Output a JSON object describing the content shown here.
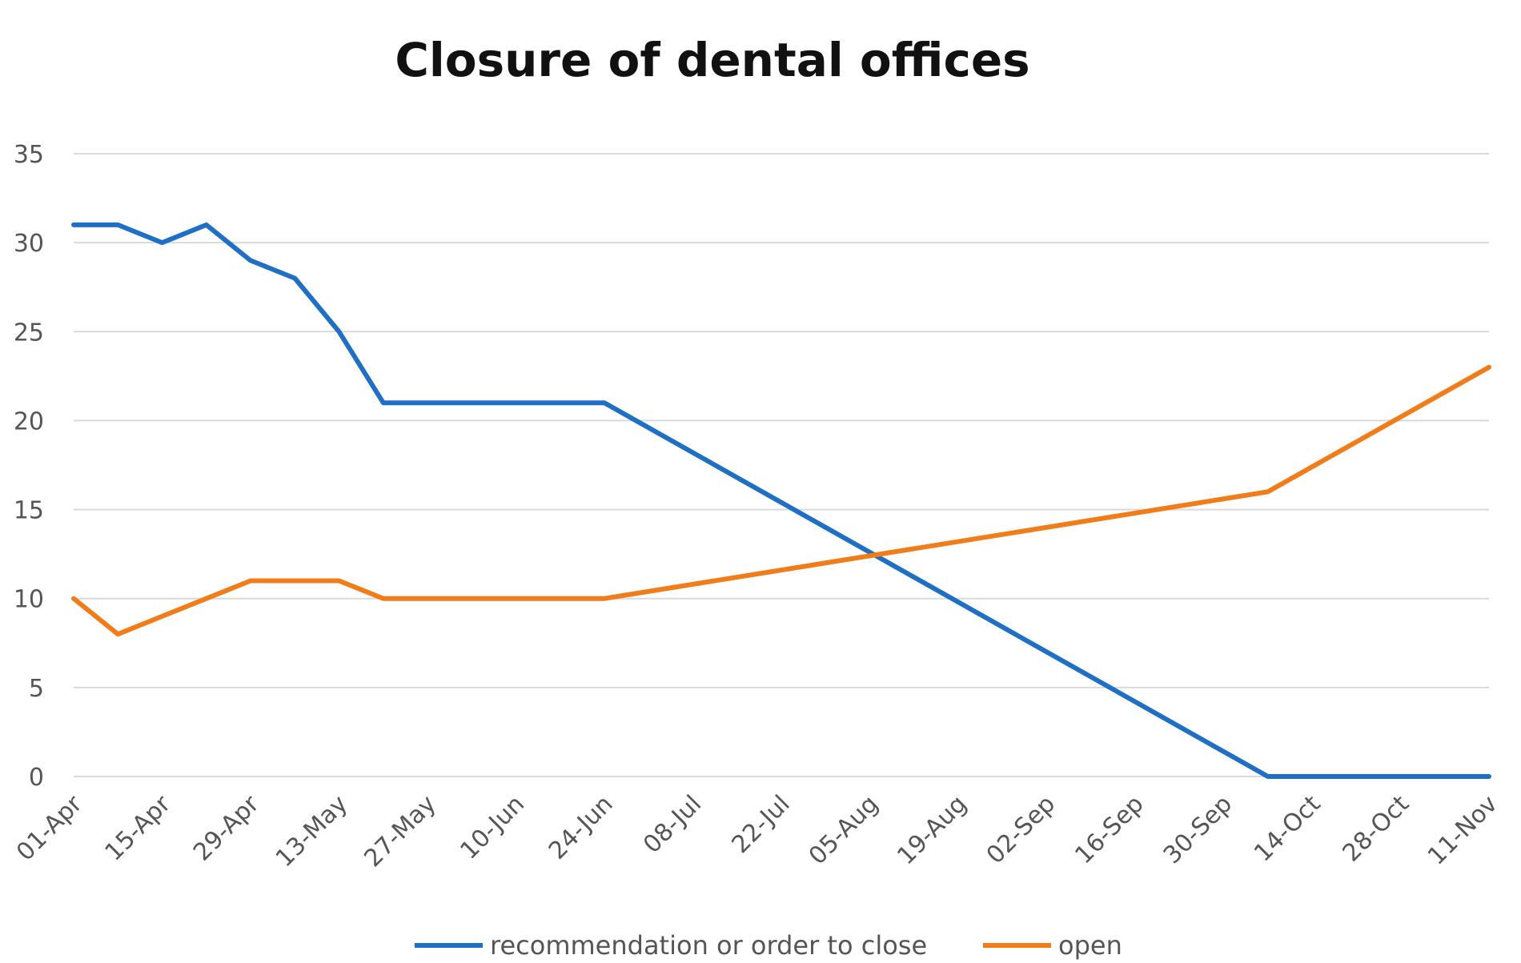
{
  "chart_data": {
    "type": "line",
    "title": "Closure of dental offices",
    "xlabel": "",
    "ylabel": "",
    "ylim": [
      0,
      35
    ],
    "yticks": [
      0,
      5,
      10,
      15,
      20,
      25,
      30,
      35
    ],
    "xlim": [
      "2020-04-01",
      "2020-11-11"
    ],
    "xticks": [
      {
        "date": "2020-04-01",
        "label": "01-Apr"
      },
      {
        "date": "2020-04-15",
        "label": "15-Apr"
      },
      {
        "date": "2020-04-29",
        "label": "29-Apr"
      },
      {
        "date": "2020-05-13",
        "label": "13-May"
      },
      {
        "date": "2020-05-27",
        "label": "27-May"
      },
      {
        "date": "2020-06-10",
        "label": "10-Jun"
      },
      {
        "date": "2020-06-24",
        "label": "24-Jun"
      },
      {
        "date": "2020-07-08",
        "label": "08-Jul"
      },
      {
        "date": "2020-07-22",
        "label": "22-Jul"
      },
      {
        "date": "2020-08-05",
        "label": "05-Aug"
      },
      {
        "date": "2020-08-19",
        "label": "19-Aug"
      },
      {
        "date": "2020-09-02",
        "label": "02-Sep"
      },
      {
        "date": "2020-09-16",
        "label": "16-Sep"
      },
      {
        "date": "2020-09-30",
        "label": "30-Sep"
      },
      {
        "date": "2020-10-14",
        "label": "14-Oct"
      },
      {
        "date": "2020-10-28",
        "label": "28-Oct"
      },
      {
        "date": "2020-11-11",
        "label": "11-Nov"
      }
    ],
    "grid": true,
    "legend_position": "bottom",
    "series": [
      {
        "name": "recommendation or order to close",
        "color": "#1f6fc5",
        "points": [
          {
            "x": "2020-04-01",
            "y": 31
          },
          {
            "x": "2020-04-08",
            "y": 31
          },
          {
            "x": "2020-04-15",
            "y": 30
          },
          {
            "x": "2020-04-22",
            "y": 31
          },
          {
            "x": "2020-04-29",
            "y": 29
          },
          {
            "x": "2020-05-06",
            "y": 28
          },
          {
            "x": "2020-05-13",
            "y": 25
          },
          {
            "x": "2020-05-20",
            "y": 21
          },
          {
            "x": "2020-05-27",
            "y": 21
          },
          {
            "x": "2020-06-03",
            "y": 21
          },
          {
            "x": "2020-06-10",
            "y": 21
          },
          {
            "x": "2020-06-17",
            "y": 21
          },
          {
            "x": "2020-06-24",
            "y": 21
          },
          {
            "x": "2020-10-07",
            "y": 0
          },
          {
            "x": "2020-11-11",
            "y": 0
          }
        ]
      },
      {
        "name": "open",
        "color": "#f07d1a",
        "points": [
          {
            "x": "2020-04-01",
            "y": 10
          },
          {
            "x": "2020-04-08",
            "y": 8
          },
          {
            "x": "2020-04-15",
            "y": 9
          },
          {
            "x": "2020-04-22",
            "y": 10
          },
          {
            "x": "2020-04-29",
            "y": 11
          },
          {
            "x": "2020-05-06",
            "y": 11
          },
          {
            "x": "2020-05-13",
            "y": 11
          },
          {
            "x": "2020-05-20",
            "y": 10
          },
          {
            "x": "2020-05-27",
            "y": 10
          },
          {
            "x": "2020-06-03",
            "y": 10
          },
          {
            "x": "2020-06-10",
            "y": 10
          },
          {
            "x": "2020-06-17",
            "y": 10
          },
          {
            "x": "2020-06-24",
            "y": 10
          },
          {
            "x": "2020-10-07",
            "y": 16
          },
          {
            "x": "2020-11-11",
            "y": 23
          }
        ]
      }
    ]
  }
}
